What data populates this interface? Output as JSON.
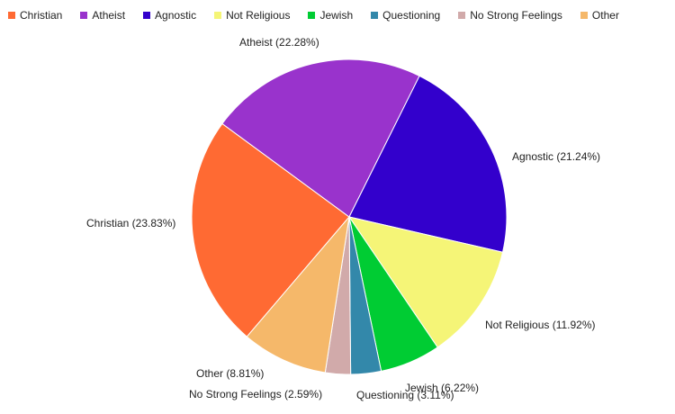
{
  "chart_data": {
    "type": "pie",
    "legend_position": "top-left",
    "slices": [
      {
        "label": "Christian",
        "value": 23.83,
        "color": "#ff6a33",
        "display": "Christian (23.83%)"
      },
      {
        "label": "Atheist",
        "value": 22.28,
        "color": "#9933cc",
        "display": "Atheist (22.28%)"
      },
      {
        "label": "Agnostic",
        "value": 21.24,
        "color": "#3300cc",
        "display": "Agnostic (21.24%)"
      },
      {
        "label": "Not Religious",
        "value": 11.92,
        "color": "#f5f577",
        "display": "Not Religious (11.92%)"
      },
      {
        "label": "Jewish",
        "value": 6.22,
        "color": "#00cc33",
        "display": "Jewish (6.22%)"
      },
      {
        "label": "Questioning",
        "value": 3.11,
        "color": "#3388aa",
        "display": "Questioning (3.11%)"
      },
      {
        "label": "No Strong Feelings",
        "value": 2.59,
        "color": "#d1aaaa",
        "display": "No Strong Feelings (2.59%)"
      },
      {
        "label": "Other",
        "value": 8.81,
        "color": "#f5b86a",
        "display": "Other (8.81%)"
      }
    ]
  }
}
